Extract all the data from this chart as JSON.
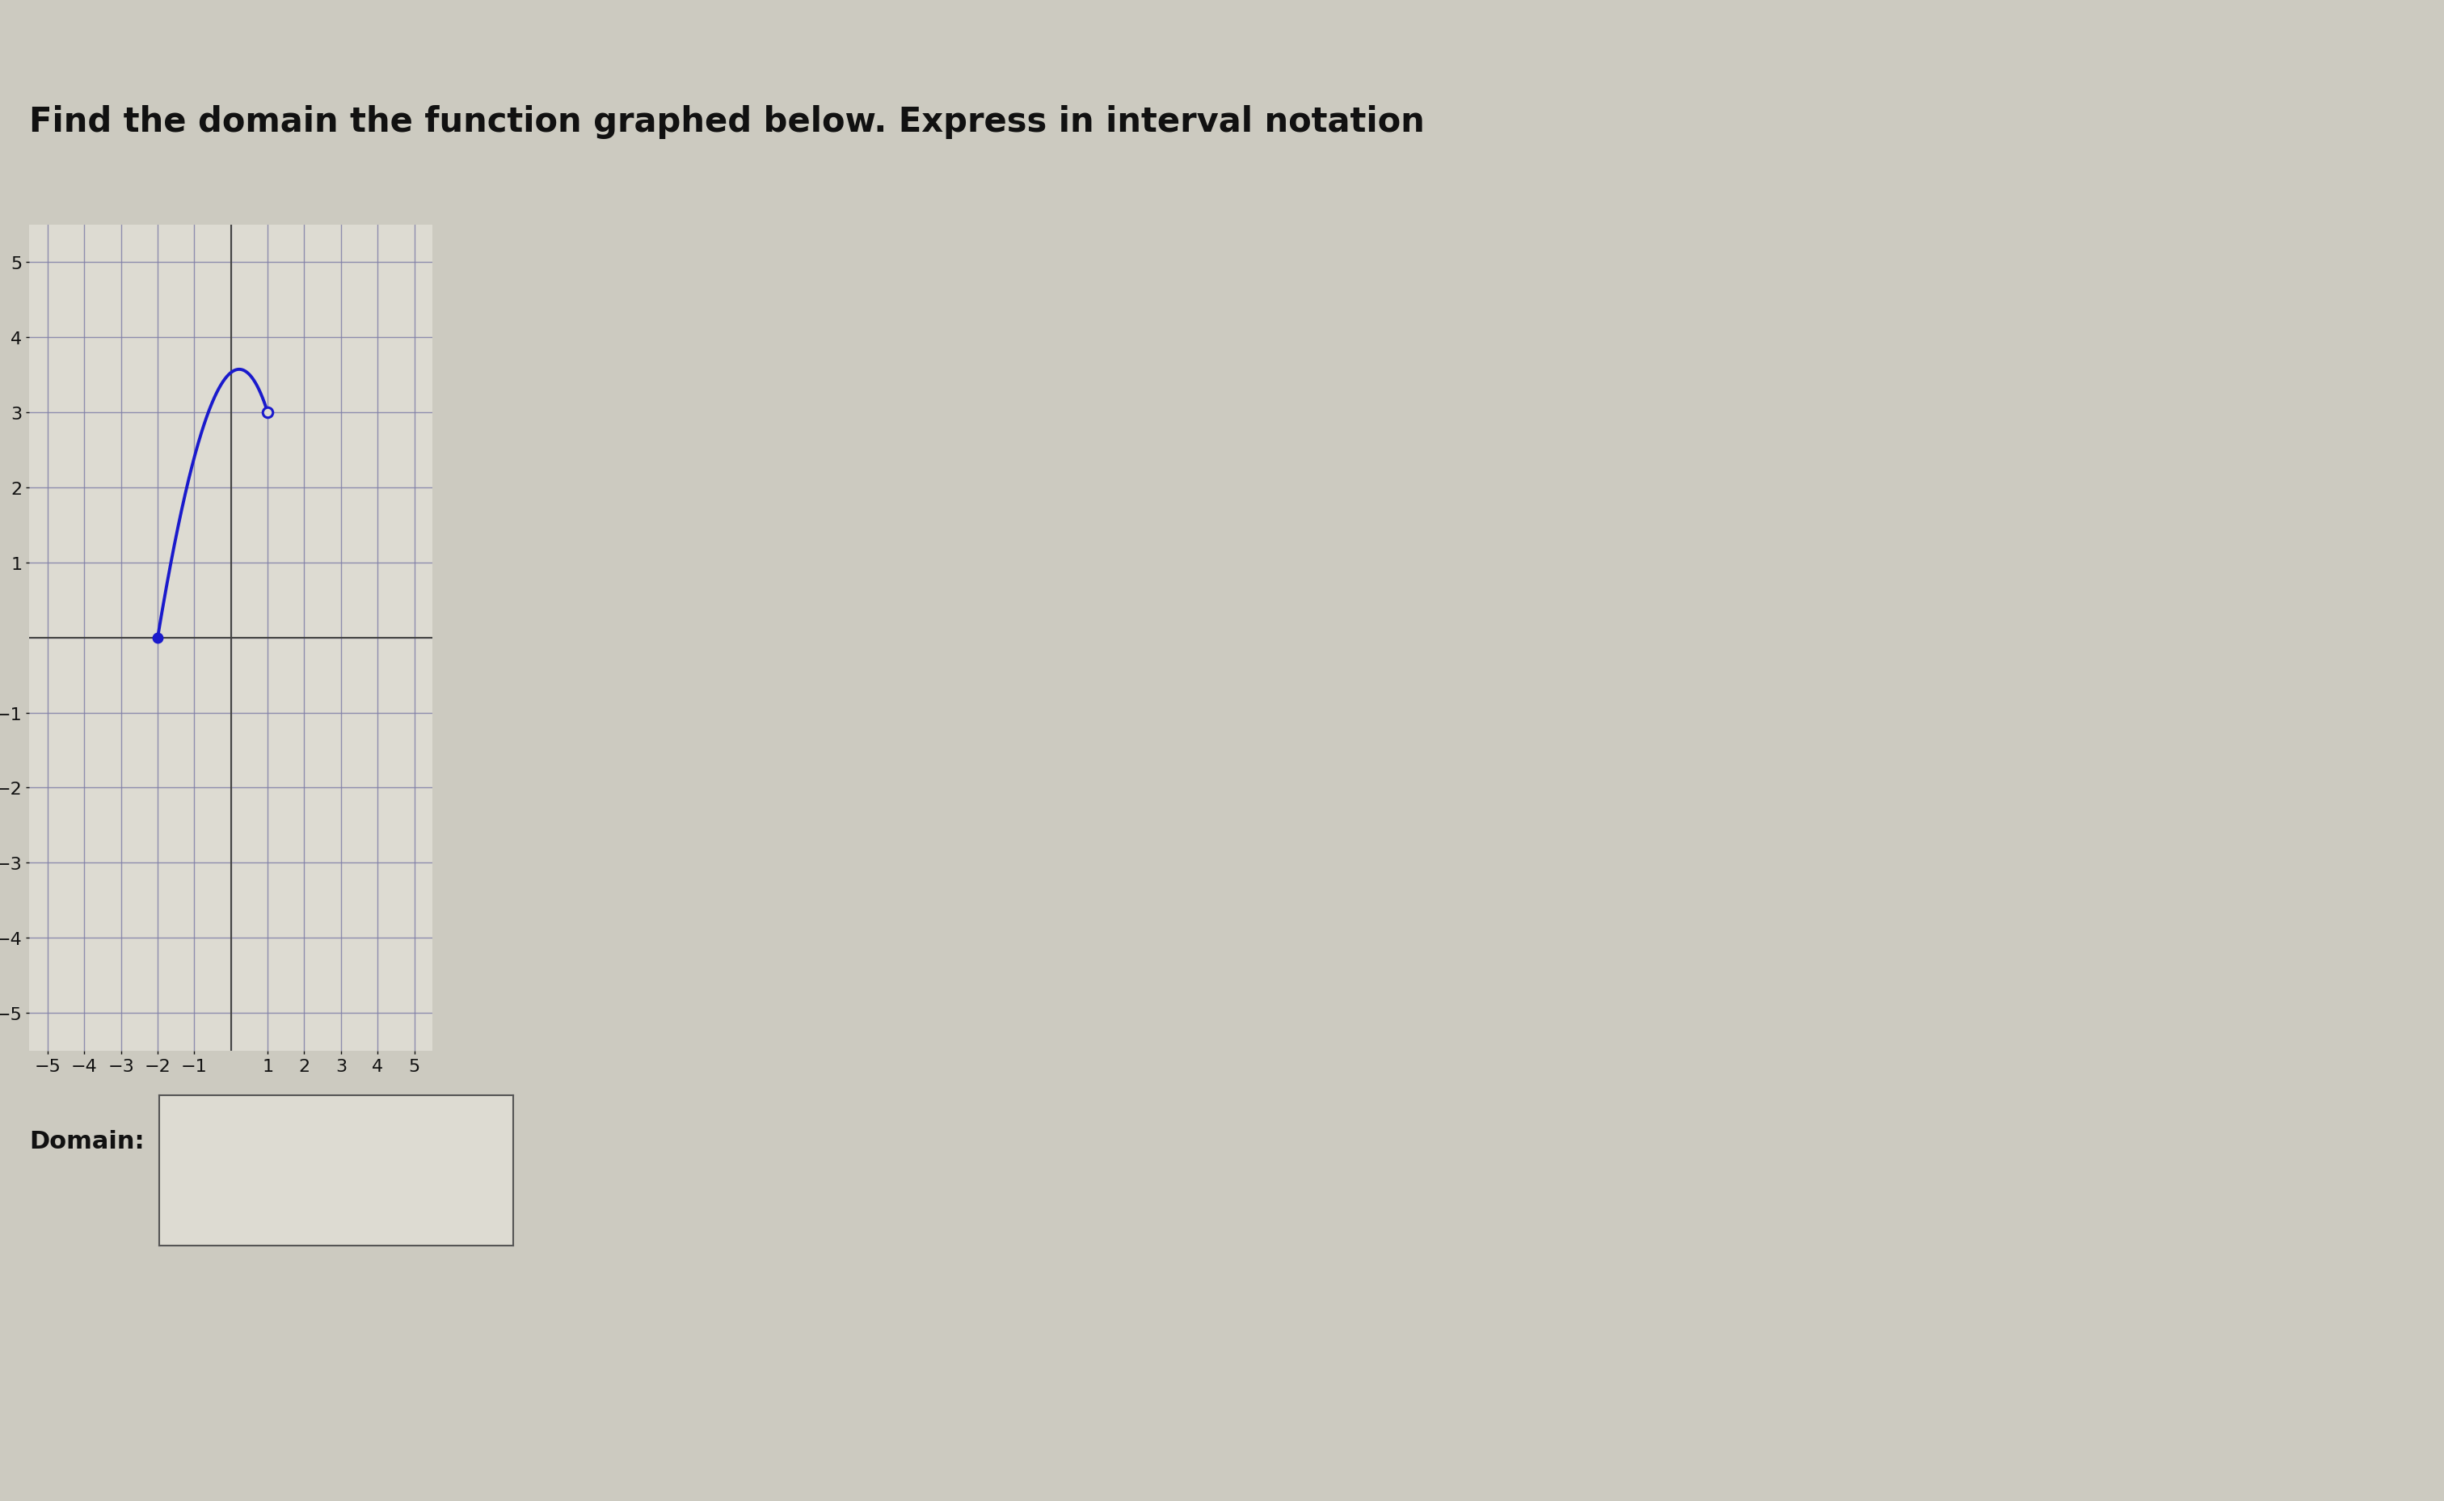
{
  "title": "Find the domain the function graphed below. Express in interval notation",
  "background_color": "#cccac0",
  "graph_bg_color": "#dddbd2",
  "grid_color": "#8080a8",
  "axis_color": "#444444",
  "curve_color": "#1a1acc",
  "curve_lw": 2.8,
  "xlim": [
    -5.5,
    5.5
  ],
  "ylim": [
    -5.5,
    5.5
  ],
  "xticks": [
    -5,
    -4,
    -3,
    -2,
    -1,
    1,
    2,
    3,
    4,
    5
  ],
  "yticks": [
    -5,
    -4,
    -3,
    -2,
    -1,
    1,
    2,
    3,
    4,
    5
  ],
  "filled_dot_x": -2,
  "filled_dot_y": 0,
  "open_dot_x": 1,
  "open_dot_y": 3,
  "bezier_p0": [
    -2,
    0
  ],
  "bezier_p1": [
    -0.3,
    5.0
  ],
  "bezier_p2": [
    1,
    3
  ],
  "domain_label": "Domain:",
  "title_fontsize": 30,
  "tick_fontsize": 16,
  "domain_fontsize": 22
}
